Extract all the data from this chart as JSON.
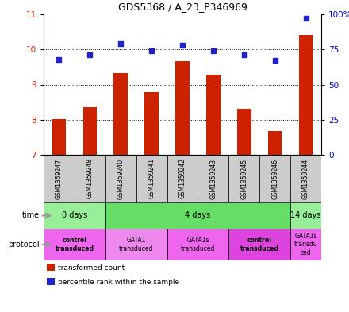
{
  "title": "GDS5368 / A_23_P346969",
  "samples": [
    "GSM1359247",
    "GSM1359248",
    "GSM1359240",
    "GSM1359241",
    "GSM1359242",
    "GSM1359243",
    "GSM1359245",
    "GSM1359246",
    "GSM1359244"
  ],
  "bar_values": [
    8.02,
    8.35,
    9.32,
    8.78,
    9.67,
    9.28,
    8.3,
    7.68,
    10.42
  ],
  "dot_values": [
    68,
    71,
    79,
    74,
    78,
    74,
    71,
    67,
    97
  ],
  "ylim": [
    7,
    11
  ],
  "y2lim": [
    0,
    100
  ],
  "yticks": [
    7,
    8,
    9,
    10,
    11
  ],
  "y2ticks": [
    0,
    25,
    50,
    75,
    100
  ],
  "y2tick_labels": [
    "0",
    "25",
    "50",
    "75",
    "100%"
  ],
  "bar_color": "#cc2200",
  "dot_color": "#2222cc",
  "bar_bottom": 7,
  "time_groups": [
    {
      "label": "0 days",
      "start": 0,
      "end": 2,
      "color": "#99ee99"
    },
    {
      "label": "4 days",
      "start": 2,
      "end": 8,
      "color": "#66dd66"
    },
    {
      "label": "14 days",
      "start": 8,
      "end": 9,
      "color": "#99ee99"
    }
  ],
  "protocol_groups": [
    {
      "label": "control\ntransduced",
      "start": 0,
      "end": 2,
      "color": "#ee66ee",
      "bold": true
    },
    {
      "label": "GATA1\ntransduced",
      "start": 2,
      "end": 4,
      "color": "#ee88ee",
      "bold": false
    },
    {
      "label": "GATA1s\ntransduced",
      "start": 4,
      "end": 6,
      "color": "#ee66ee",
      "bold": false
    },
    {
      "label": "control\ntransduced",
      "start": 6,
      "end": 8,
      "color": "#dd44dd",
      "bold": true
    },
    {
      "label": "GATA1s\ntransdu\nced",
      "start": 8,
      "end": 9,
      "color": "#ee66ee",
      "bold": false
    }
  ],
  "legend_items": [
    {
      "color": "#cc2200",
      "label": "transformed count"
    },
    {
      "color": "#2222cc",
      "label": "percentile rank within the sample"
    }
  ],
  "left_labels": [
    "time",
    "protocol"
  ],
  "left_arrow_color": "#aaaaaa",
  "sample_bg_color": "#cccccc",
  "grid_color": "black",
  "xlabel_color": "#cc2200",
  "y2label_color": "#0000cc"
}
